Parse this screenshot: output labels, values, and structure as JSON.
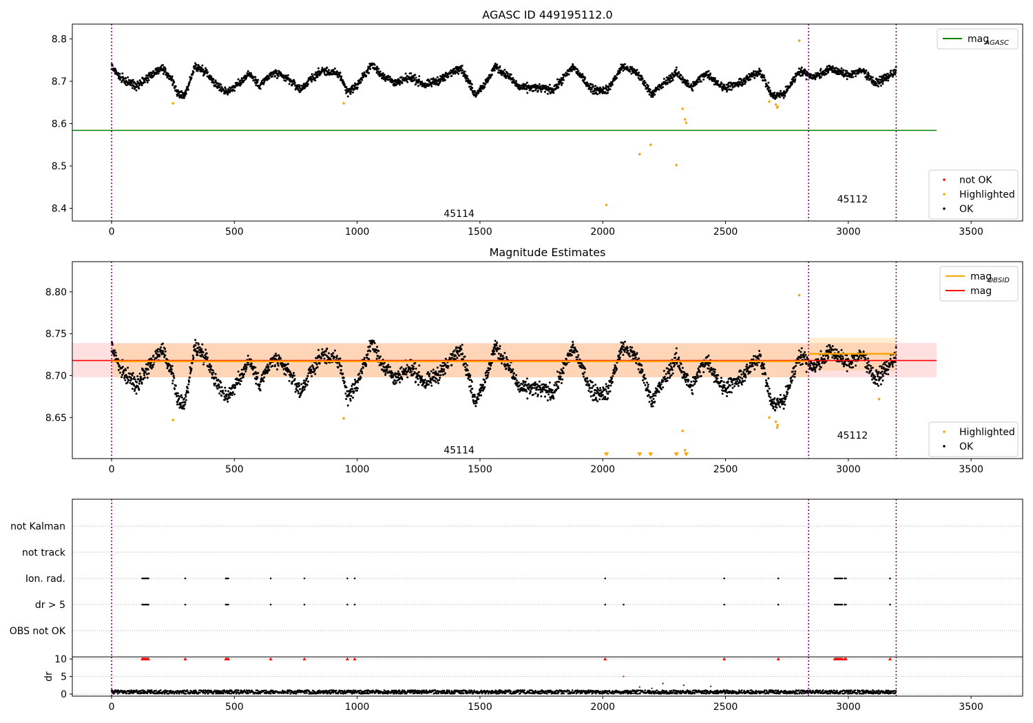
{
  "chart_data": [
    {
      "type": "scatter",
      "title": "AGASC ID 449195112.0",
      "xlabel": "",
      "ylabel": "",
      "xlim": [
        -160,
        3710
      ],
      "ylim": [
        8.37,
        8.835
      ],
      "xticks": [
        0,
        500,
        1000,
        1500,
        2000,
        2500,
        3000,
        3500
      ],
      "xtick_labels": [
        "0",
        "500",
        "1000",
        "1500",
        "2000",
        "2500",
        "3000",
        "3500"
      ],
      "yticks": [
        8.4,
        8.5,
        8.6,
        8.7,
        8.8
      ],
      "ytick_labels": [
        "8.4",
        "8.5",
        "8.6",
        "8.7",
        "8.8"
      ],
      "grid": false,
      "hlines": [
        {
          "name": "mag_AGASC",
          "y": 8.584,
          "x": [
            -160,
            3360
          ],
          "color": "#008000"
        }
      ],
      "vlines": [
        0,
        2838,
        3195
      ],
      "obsid_labels": [
        {
          "text": "45114",
          "x": 1415,
          "y": 8.38
        },
        {
          "text": "45112",
          "x": 3017,
          "y": 8.414
        }
      ],
      "legends": [
        {
          "placement": "top-right",
          "entries": [
            {
              "label": "mag",
              "sub": "AGASC",
              "kind": "line",
              "color": "#008000"
            }
          ]
        },
        {
          "placement": "bottom-right",
          "entries": [
            {
              "label": "not OK",
              "kind": "marker",
              "color": "#ff0000"
            },
            {
              "label": "Highlighted",
              "kind": "marker",
              "color": "#ffa500"
            },
            {
              "label": "OK",
              "kind": "marker",
              "color": "#000000"
            }
          ]
        }
      ],
      "series": [
        {
          "name": "OK",
          "color": "#000000",
          "kind": "light-curve",
          "x": [
            0,
            3195
          ],
          "curve": [
            [
              0,
              8.735
            ],
            [
              40,
              8.705
            ],
            [
              100,
              8.69
            ],
            [
              160,
              8.715
            ],
            [
              200,
              8.73
            ],
            [
              240,
              8.71
            ],
            [
              275,
              8.665
            ],
            [
              300,
              8.67
            ],
            [
              340,
              8.735
            ],
            [
              380,
              8.725
            ],
            [
              430,
              8.69
            ],
            [
              470,
              8.675
            ],
            [
              520,
              8.695
            ],
            [
              560,
              8.72
            ],
            [
              600,
              8.69
            ],
            [
              660,
              8.72
            ],
            [
              720,
              8.705
            ],
            [
              770,
              8.68
            ],
            [
              810,
              8.705
            ],
            [
              860,
              8.725
            ],
            [
              930,
              8.715
            ],
            [
              960,
              8.675
            ],
            [
              1000,
              8.69
            ],
            [
              1060,
              8.74
            ],
            [
              1100,
              8.715
            ],
            [
              1160,
              8.695
            ],
            [
              1220,
              8.71
            ],
            [
              1280,
              8.69
            ],
            [
              1360,
              8.71
            ],
            [
              1420,
              8.735
            ],
            [
              1480,
              8.67
            ],
            [
              1530,
              8.7
            ],
            [
              1560,
              8.735
            ],
            [
              1620,
              8.71
            ],
            [
              1660,
              8.685
            ],
            [
              1720,
              8.685
            ],
            [
              1800,
              8.68
            ],
            [
              1880,
              8.735
            ],
            [
              1920,
              8.705
            ],
            [
              1960,
              8.68
            ],
            [
              2020,
              8.68
            ],
            [
              2080,
              8.735
            ],
            [
              2140,
              8.72
            ],
            [
              2200,
              8.67
            ],
            [
              2260,
              8.7
            ],
            [
              2300,
              8.72
            ],
            [
              2360,
              8.685
            ],
            [
              2420,
              8.72
            ],
            [
              2490,
              8.685
            ],
            [
              2560,
              8.695
            ],
            [
              2640,
              8.725
            ],
            [
              2690,
              8.665
            ],
            [
              2740,
              8.67
            ],
            [
              2800,
              8.725
            ],
            [
              2860,
              8.71
            ],
            [
              2930,
              8.73
            ],
            [
              2990,
              8.715
            ],
            [
              3060,
              8.725
            ],
            [
              3110,
              8.695
            ],
            [
              3160,
              8.71
            ],
            [
              3195,
              8.725
            ]
          ],
          "noise": 0.009
        },
        {
          "name": "Highlighted",
          "color": "#ffa500",
          "x": [
            250,
            945,
            2015,
            2150,
            2195,
            2300,
            2325,
            2335,
            2340,
            2678,
            2705,
            2710,
            2712,
            2800
          ],
          "y": [
            8.648,
            8.648,
            8.408,
            8.528,
            8.55,
            8.502,
            8.635,
            8.61,
            8.602,
            8.652,
            8.645,
            8.638,
            8.64,
            8.796
          ]
        }
      ]
    },
    {
      "type": "scatter",
      "title": "Magnitude Estimates",
      "xlabel": "",
      "ylabel": "",
      "xlim": [
        -160,
        3710
      ],
      "ylim": [
        8.601,
        8.836
      ],
      "xticks": [
        0,
        500,
        1000,
        1500,
        2000,
        2500,
        3000,
        3500
      ],
      "xtick_labels": [
        "0",
        "500",
        "1000",
        "1500",
        "2000",
        "2500",
        "3000",
        "3500"
      ],
      "yticks": [
        8.65,
        8.7,
        8.75,
        8.8
      ],
      "ytick_labels": [
        "8.65",
        "8.70",
        "8.75",
        "8.80"
      ],
      "grid": false,
      "vlines": [
        0,
        2838,
        3195
      ],
      "obsid_labels": [
        {
          "text": "45114",
          "x": 1415,
          "y": 8.607
        },
        {
          "text": "45112",
          "x": 3017,
          "y": 8.625
        }
      ],
      "bands": [
        {
          "name": "mag",
          "x": [
            -160,
            3360
          ],
          "y": [
            8.698,
            8.739
          ],
          "color": "#ff0000",
          "opacity": 0.12
        },
        {
          "name": "mag_OBSID 45114",
          "x": [
            0,
            2838
          ],
          "y": [
            8.698,
            8.738
          ],
          "color": "#ffa500",
          "opacity": 0.18
        },
        {
          "name": "mag_OBSID 45112",
          "x": [
            2838,
            3195
          ],
          "y": [
            8.706,
            8.745
          ],
          "color": "#ffa500",
          "opacity": 0.18
        }
      ],
      "lines": [
        {
          "name": "mag",
          "x": [
            -160,
            3360
          ],
          "y": [
            8.718,
            8.718
          ],
          "color": "#ff0000"
        },
        {
          "name": "mag_OBSID",
          "x": [
            0,
            2838
          ],
          "y": [
            8.717,
            8.717
          ],
          "color": "#ffa500"
        },
        {
          "name": "mag_OBSID",
          "x": [
            2838,
            3195
          ],
          "y": [
            8.726,
            8.726
          ],
          "color": "#ffa500"
        }
      ],
      "legends": [
        {
          "placement": "top-right",
          "entries": [
            {
              "label": "mag",
              "sub": "OBSID",
              "kind": "line",
              "color": "#ffa500"
            },
            {
              "label": "mag",
              "kind": "line",
              "color": "#ff0000"
            }
          ]
        },
        {
          "placement": "bottom-right",
          "entries": [
            {
              "label": "Highlighted",
              "kind": "marker",
              "color": "#ffa500"
            },
            {
              "label": "OK",
              "kind": "marker",
              "color": "#000000"
            }
          ]
        }
      ],
      "series": [
        {
          "name": "OK",
          "color": "#000000",
          "kind": "light-curve",
          "x": [
            0,
            3195
          ],
          "noise": 0.009
        },
        {
          "name": "Highlighted",
          "color": "#ffa500",
          "x": [
            250,
            945,
            2678,
            2705,
            2710,
            2712,
            2800,
            2325,
            2335,
            3125
          ],
          "y": [
            8.647,
            8.649,
            8.65,
            8.645,
            8.638,
            8.641,
            8.796,
            8.634,
            8.611,
            8.672
          ]
        },
        {
          "name": "Highlighted (below axis)",
          "color": "#ffa500",
          "marker": "triangle-down",
          "x": [
            2015,
            2150,
            2195,
            2300,
            2340
          ]
        }
      ]
    },
    {
      "type": "scatter",
      "title": "",
      "xlabel": "",
      "ylabel": "",
      "xlim": [
        -160,
        3710
      ],
      "categories": [
        "not Kalman",
        "not track",
        "Ion. rad.",
        "dr > 5",
        "OBS not OK"
      ],
      "grid": true,
      "vlines": [
        0,
        2838,
        3195
      ],
      "series": [
        {
          "name": "Ion. rad.",
          "color": "#000000",
          "x": [
            125,
            130,
            135,
            140,
            145,
            150,
            300,
            465,
            470,
            475,
            648,
            785,
            960,
            990,
            2010,
            2495,
            2715,
            2945,
            2950,
            2955,
            2960,
            2965,
            2970,
            2975,
            2985,
            2990,
            3170
          ]
        },
        {
          "name": "dr > 5",
          "color": "#000000",
          "x": [
            125,
            130,
            135,
            140,
            145,
            150,
            300,
            465,
            470,
            475,
            648,
            785,
            960,
            990,
            2010,
            2085,
            2495,
            2715,
            2945,
            2950,
            2955,
            2960,
            2965,
            2970,
            2975,
            2985,
            2990,
            3170
          ]
        }
      ]
    },
    {
      "type": "scatter",
      "title": "",
      "xlabel": "",
      "ylabel": "dr",
      "xlim": [
        -160,
        3710
      ],
      "ylim": [
        -0.6,
        10.6
      ],
      "yticks": [
        0,
        5,
        10
      ],
      "ytick_labels": [
        "0",
        "5",
        "10"
      ],
      "xticks": [
        0,
        500,
        1000,
        1500,
        2000,
        2500,
        3000,
        3500
      ],
      "xtick_labels": [
        "0",
        "500",
        "1000",
        "1500",
        "2000",
        "2500",
        "3000",
        "3500"
      ],
      "grid": true,
      "vlines": [
        0,
        2838,
        3195
      ],
      "series": [
        {
          "name": "dr",
          "color": "#000000",
          "kind": "noise-band",
          "x": [
            0,
            3195
          ],
          "y_range": [
            0.1,
            1.1
          ]
        },
        {
          "name": "dr clipped",
          "color": "#ff0000",
          "marker": "triangle-up",
          "y": 10,
          "x": [
            125,
            130,
            135,
            140,
            145,
            150,
            300,
            465,
            470,
            475,
            648,
            785,
            960,
            990,
            2010,
            2495,
            2715,
            2945,
            2950,
            2955,
            2960,
            2965,
            2970,
            2975,
            2985,
            2990,
            3170
          ]
        },
        {
          "name": "dr outliers",
          "color": "#000000",
          "x": [
            2085,
            2150,
            2200,
            2245,
            2330,
            2440
          ],
          "y": [
            5.0,
            2.0,
            1.6,
            3.0,
            2.5,
            2.2
          ]
        }
      ]
    }
  ]
}
